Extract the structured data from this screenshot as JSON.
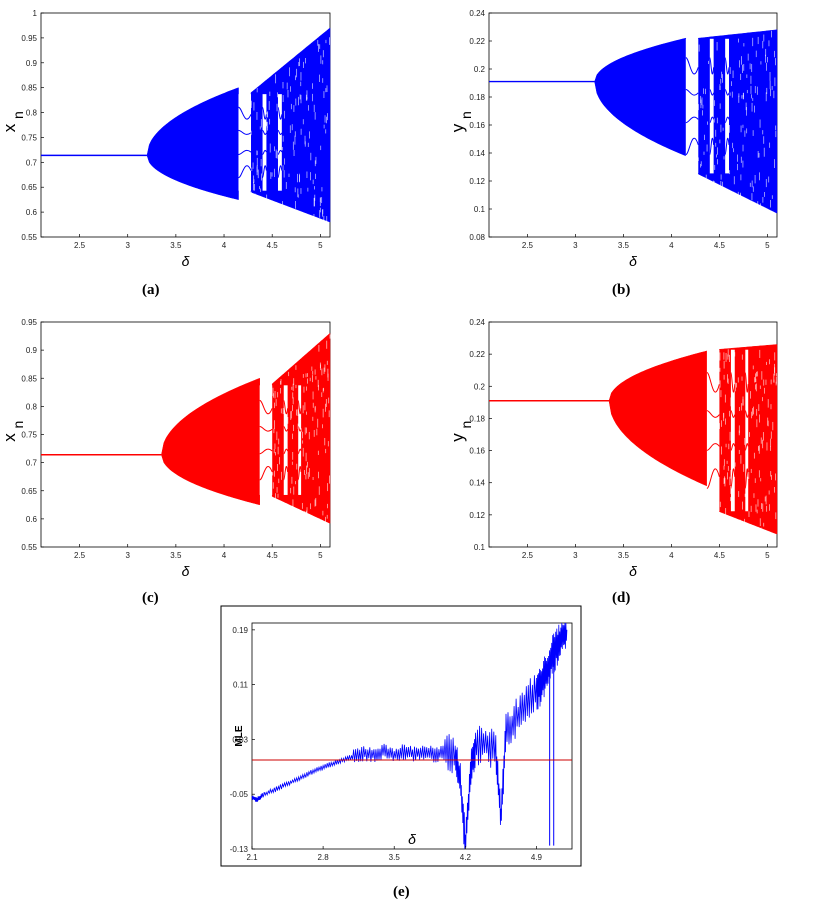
{
  "chart_data": [
    {
      "id": "a",
      "type": "scatter",
      "caption": "(a)",
      "xlabel": "δ",
      "ylabel": "x",
      "ylabel_sub": "n",
      "xlim": [
        2.1,
        5.1
      ],
      "ylim": [
        0.55,
        1.0
      ],
      "xticks": [
        {
          "v": 2.5,
          "t": "2.5"
        },
        {
          "v": 3,
          "t": "3"
        },
        {
          "v": 3.5,
          "t": "3.5"
        },
        {
          "v": 4,
          "t": "4"
        },
        {
          "v": 4.5,
          "t": "4.5"
        },
        {
          "v": 5,
          "t": "5"
        }
      ],
      "yticks": [
        {
          "v": 0.55,
          "t": "0.55"
        },
        {
          "v": 0.6,
          "t": "0.6"
        },
        {
          "v": 0.65,
          "t": "0.65"
        },
        {
          "v": 0.7,
          "t": "0.7"
        },
        {
          "v": 0.75,
          "t": "0.75"
        },
        {
          "v": 0.8,
          "t": "0.8"
        },
        {
          "v": 0.85,
          "t": "0.85"
        },
        {
          "v": 0.9,
          "t": "0.9"
        },
        {
          "v": 0.95,
          "t": "0.95"
        },
        {
          "v": 1,
          "t": "1"
        }
      ],
      "color": "#0000ff",
      "fixed_point": {
        "value": 0.714,
        "x_end": 3.2
      },
      "bifurcation_regions": [
        {
          "x": [
            3.2,
            4.15
          ],
          "upper": [
            0.714,
            0.85
          ],
          "lower": [
            0.714,
            0.625
          ]
        },
        {
          "x": [
            4.28,
            5.1
          ],
          "upper": [
            0.84,
            0.97
          ],
          "lower": [
            0.64,
            0.58
          ]
        }
      ],
      "windows": [
        [
          4.15,
          4.28
        ],
        [
          4.4,
          4.44
        ],
        [
          4.56,
          4.6
        ]
      ]
    },
    {
      "id": "b",
      "type": "scatter",
      "caption": "(b)",
      "xlabel": "δ",
      "ylabel": "y",
      "ylabel_sub": "n",
      "xlim": [
        2.1,
        5.1
      ],
      "ylim": [
        0.08,
        0.24
      ],
      "xticks": [
        {
          "v": 2.5,
          "t": "2.5"
        },
        {
          "v": 3,
          "t": "3"
        },
        {
          "v": 3.5,
          "t": "3.5"
        },
        {
          "v": 4,
          "t": "4"
        },
        {
          "v": 4.5,
          "t": "4.5"
        },
        {
          "v": 5,
          "t": "5"
        }
      ],
      "yticks": [
        {
          "v": 0.08,
          "t": "0.08"
        },
        {
          "v": 0.1,
          "t": "0.1"
        },
        {
          "v": 0.12,
          "t": "0.12"
        },
        {
          "v": 0.14,
          "t": "0.14"
        },
        {
          "v": 0.16,
          "t": "0.16"
        },
        {
          "v": 0.18,
          "t": "0.18"
        },
        {
          "v": 0.2,
          "t": "0.2"
        },
        {
          "v": 0.22,
          "t": "0.22"
        },
        {
          "v": 0.24,
          "t": "0.24"
        }
      ],
      "color": "#0000ff",
      "fixed_point": {
        "value": 0.191,
        "x_end": 3.2
      },
      "bifurcation_regions": [
        {
          "x": [
            3.2,
            4.15
          ],
          "upper": [
            0.191,
            0.222
          ],
          "lower": [
            0.191,
            0.138
          ]
        },
        {
          "x": [
            4.28,
            5.1
          ],
          "upper": [
            0.222,
            0.228
          ],
          "lower": [
            0.125,
            0.097
          ]
        }
      ],
      "windows": [
        [
          4.15,
          4.28
        ],
        [
          4.4,
          4.44
        ],
        [
          4.56,
          4.6
        ]
      ]
    },
    {
      "id": "c",
      "type": "scatter",
      "caption": "(c)",
      "xlabel": "δ",
      "ylabel": "x",
      "ylabel_sub": "n",
      "xlim": [
        2.1,
        5.1
      ],
      "ylim": [
        0.55,
        0.95
      ],
      "xticks": [
        {
          "v": 2.5,
          "t": "2.5"
        },
        {
          "v": 3,
          "t": "3"
        },
        {
          "v": 3.5,
          "t": "3.5"
        },
        {
          "v": 4,
          "t": "4"
        },
        {
          "v": 4.5,
          "t": "4.5"
        },
        {
          "v": 5,
          "t": "5"
        }
      ],
      "yticks": [
        {
          "v": 0.55,
          "t": "0.55"
        },
        {
          "v": 0.6,
          "t": "0.6"
        },
        {
          "v": 0.65,
          "t": "0.65"
        },
        {
          "v": 0.7,
          "t": "0.7"
        },
        {
          "v": 0.75,
          "t": "0.75"
        },
        {
          "v": 0.8,
          "t": "0.8"
        },
        {
          "v": 0.85,
          "t": "0.85"
        },
        {
          "v": 0.9,
          "t": "0.9"
        },
        {
          "v": 0.95,
          "t": "0.95"
        }
      ],
      "color": "#ff0000",
      "fixed_point": {
        "value": 0.714,
        "x_end": 3.35
      },
      "bifurcation_regions": [
        {
          "x": [
            3.35,
            4.37
          ],
          "upper": [
            0.714,
            0.85
          ],
          "lower": [
            0.714,
            0.625
          ]
        },
        {
          "x": [
            4.5,
            5.1
          ],
          "upper": [
            0.84,
            0.93
          ],
          "lower": [
            0.64,
            0.592
          ]
        }
      ],
      "windows": [
        [
          4.37,
          4.5
        ],
        [
          4.62,
          4.66
        ],
        [
          4.77,
          4.8
        ]
      ]
    },
    {
      "id": "d",
      "type": "scatter",
      "caption": "(d)",
      "xlabel": "δ",
      "ylabel": "y",
      "ylabel_sub": "n",
      "xlim": [
        2.1,
        5.1
      ],
      "ylim": [
        0.1,
        0.24
      ],
      "xticks": [
        {
          "v": 2.5,
          "t": "2.5"
        },
        {
          "v": 3,
          "t": "3"
        },
        {
          "v": 3.5,
          "t": "3.5"
        },
        {
          "v": 4,
          "t": "4"
        },
        {
          "v": 4.5,
          "t": "4.5"
        },
        {
          "v": 5,
          "t": "5"
        }
      ],
      "yticks": [
        {
          "v": 0.1,
          "t": "0.1"
        },
        {
          "v": 0.12,
          "t": "0.12"
        },
        {
          "v": 0.14,
          "t": "0.14"
        },
        {
          "v": 0.16,
          "t": "0.16"
        },
        {
          "v": 0.18,
          "t": "0.18"
        },
        {
          "v": 0.2,
          "t": "0.2"
        },
        {
          "v": 0.22,
          "t": "0.22"
        },
        {
          "v": 0.24,
          "t": "0.24"
        }
      ],
      "color": "#ff0000",
      "fixed_point": {
        "value": 0.191,
        "x_end": 3.35
      },
      "bifurcation_regions": [
        {
          "x": [
            3.35,
            4.37
          ],
          "upper": [
            0.191,
            0.222
          ],
          "lower": [
            0.191,
            0.138
          ]
        },
        {
          "x": [
            4.5,
            5.1
          ],
          "upper": [
            0.223,
            0.226
          ],
          "lower": [
            0.122,
            0.108
          ]
        }
      ],
      "windows": [
        [
          4.37,
          4.5
        ],
        [
          4.62,
          4.66
        ],
        [
          4.77,
          4.8
        ]
      ]
    },
    {
      "id": "e",
      "type": "line",
      "caption": "(e)",
      "xlabel": "δ",
      "ylabel": "MLE",
      "xlim": [
        2.1,
        5.25
      ],
      "ylim": [
        -0.13,
        0.2
      ],
      "xticks": [
        {
          "v": 2.1,
          "t": "2.1"
        },
        {
          "v": 2.8,
          "t": "2.8"
        },
        {
          "v": 3.5,
          "t": "3.5"
        },
        {
          "v": 4.2,
          "t": "4.2"
        },
        {
          "v": 4.9,
          "t": "4.9"
        }
      ],
      "yticks": [
        {
          "v": -0.13,
          "t": "-0.13"
        },
        {
          "v": -0.05,
          "t": "-0.05"
        },
        {
          "v": 0.03,
          "t": "0.03"
        },
        {
          "v": 0.11,
          "t": "0.11"
        },
        {
          "v": 0.19,
          "t": "0.19"
        }
      ],
      "zero_line": {
        "value": 0.0,
        "color": "#cc0000"
      },
      "series": [
        {
          "color": "#0000ff",
          "x": [
            2.1,
            2.15,
            2.2,
            2.3,
            2.4,
            2.5,
            2.6,
            2.7,
            2.8,
            2.9,
            3.0,
            3.1,
            3.2,
            3.3,
            3.4,
            3.5,
            3.6,
            3.7,
            3.8,
            3.9,
            4.0,
            4.1,
            4.15,
            4.2,
            4.25,
            4.3,
            4.4,
            4.5,
            4.55,
            4.6,
            4.7,
            4.8,
            4.9,
            4.95,
            5.0,
            5.05,
            5.1,
            5.15,
            5.2
          ],
          "y": [
            -0.055,
            -0.058,
            -0.052,
            -0.045,
            -0.038,
            -0.031,
            -0.024,
            -0.017,
            -0.011,
            -0.005,
            0.0,
            0.005,
            0.01,
            0.008,
            0.012,
            0.008,
            0.012,
            0.009,
            0.012,
            0.008,
            0.01,
            0.005,
            -0.03,
            -0.125,
            -0.02,
            0.02,
            0.025,
            0.01,
            -0.085,
            0.04,
            0.06,
            0.085,
            0.1,
            0.11,
            0.13,
            0.15,
            0.165,
            0.18,
            0.19
          ]
        }
      ]
    }
  ]
}
